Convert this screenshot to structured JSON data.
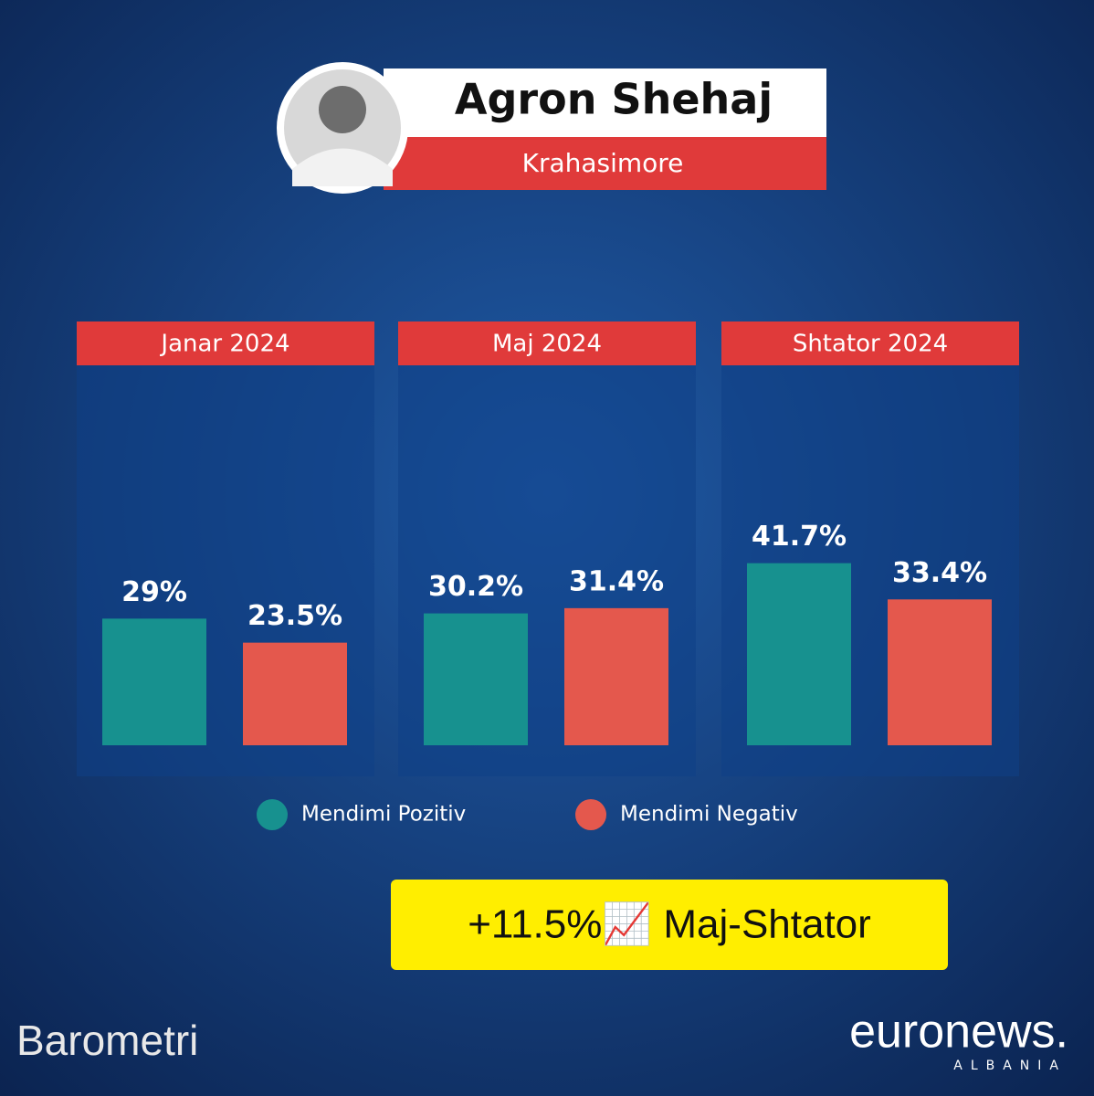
{
  "chart_data": {
    "type": "bar",
    "title": "Agron Shehaj",
    "subtitle": "Krahasimore",
    "categories": [
      "Janar 2024",
      "Maj 2024",
      "Shtator 2024"
    ],
    "series": [
      {
        "name": "Mendimi Pozitiv",
        "color": "#17918f",
        "values": [
          29,
          30.2,
          41.7
        ],
        "value_labels": [
          "29%",
          "30.2%",
          "41.7%"
        ]
      },
      {
        "name": "Mendimi Negativ",
        "color": "#e4584d",
        "values": [
          23.5,
          31.4,
          33.4
        ],
        "value_labels": [
          "23.5%",
          "31.4%",
          "33.4%"
        ]
      }
    ],
    "ylim": [
      0,
      87
    ],
    "annotation": "+11.5%📈 Maj-Shtator"
  },
  "brand": {
    "left": "Barometri",
    "right": "euronews.",
    "right_sub": "ALBANIA"
  }
}
